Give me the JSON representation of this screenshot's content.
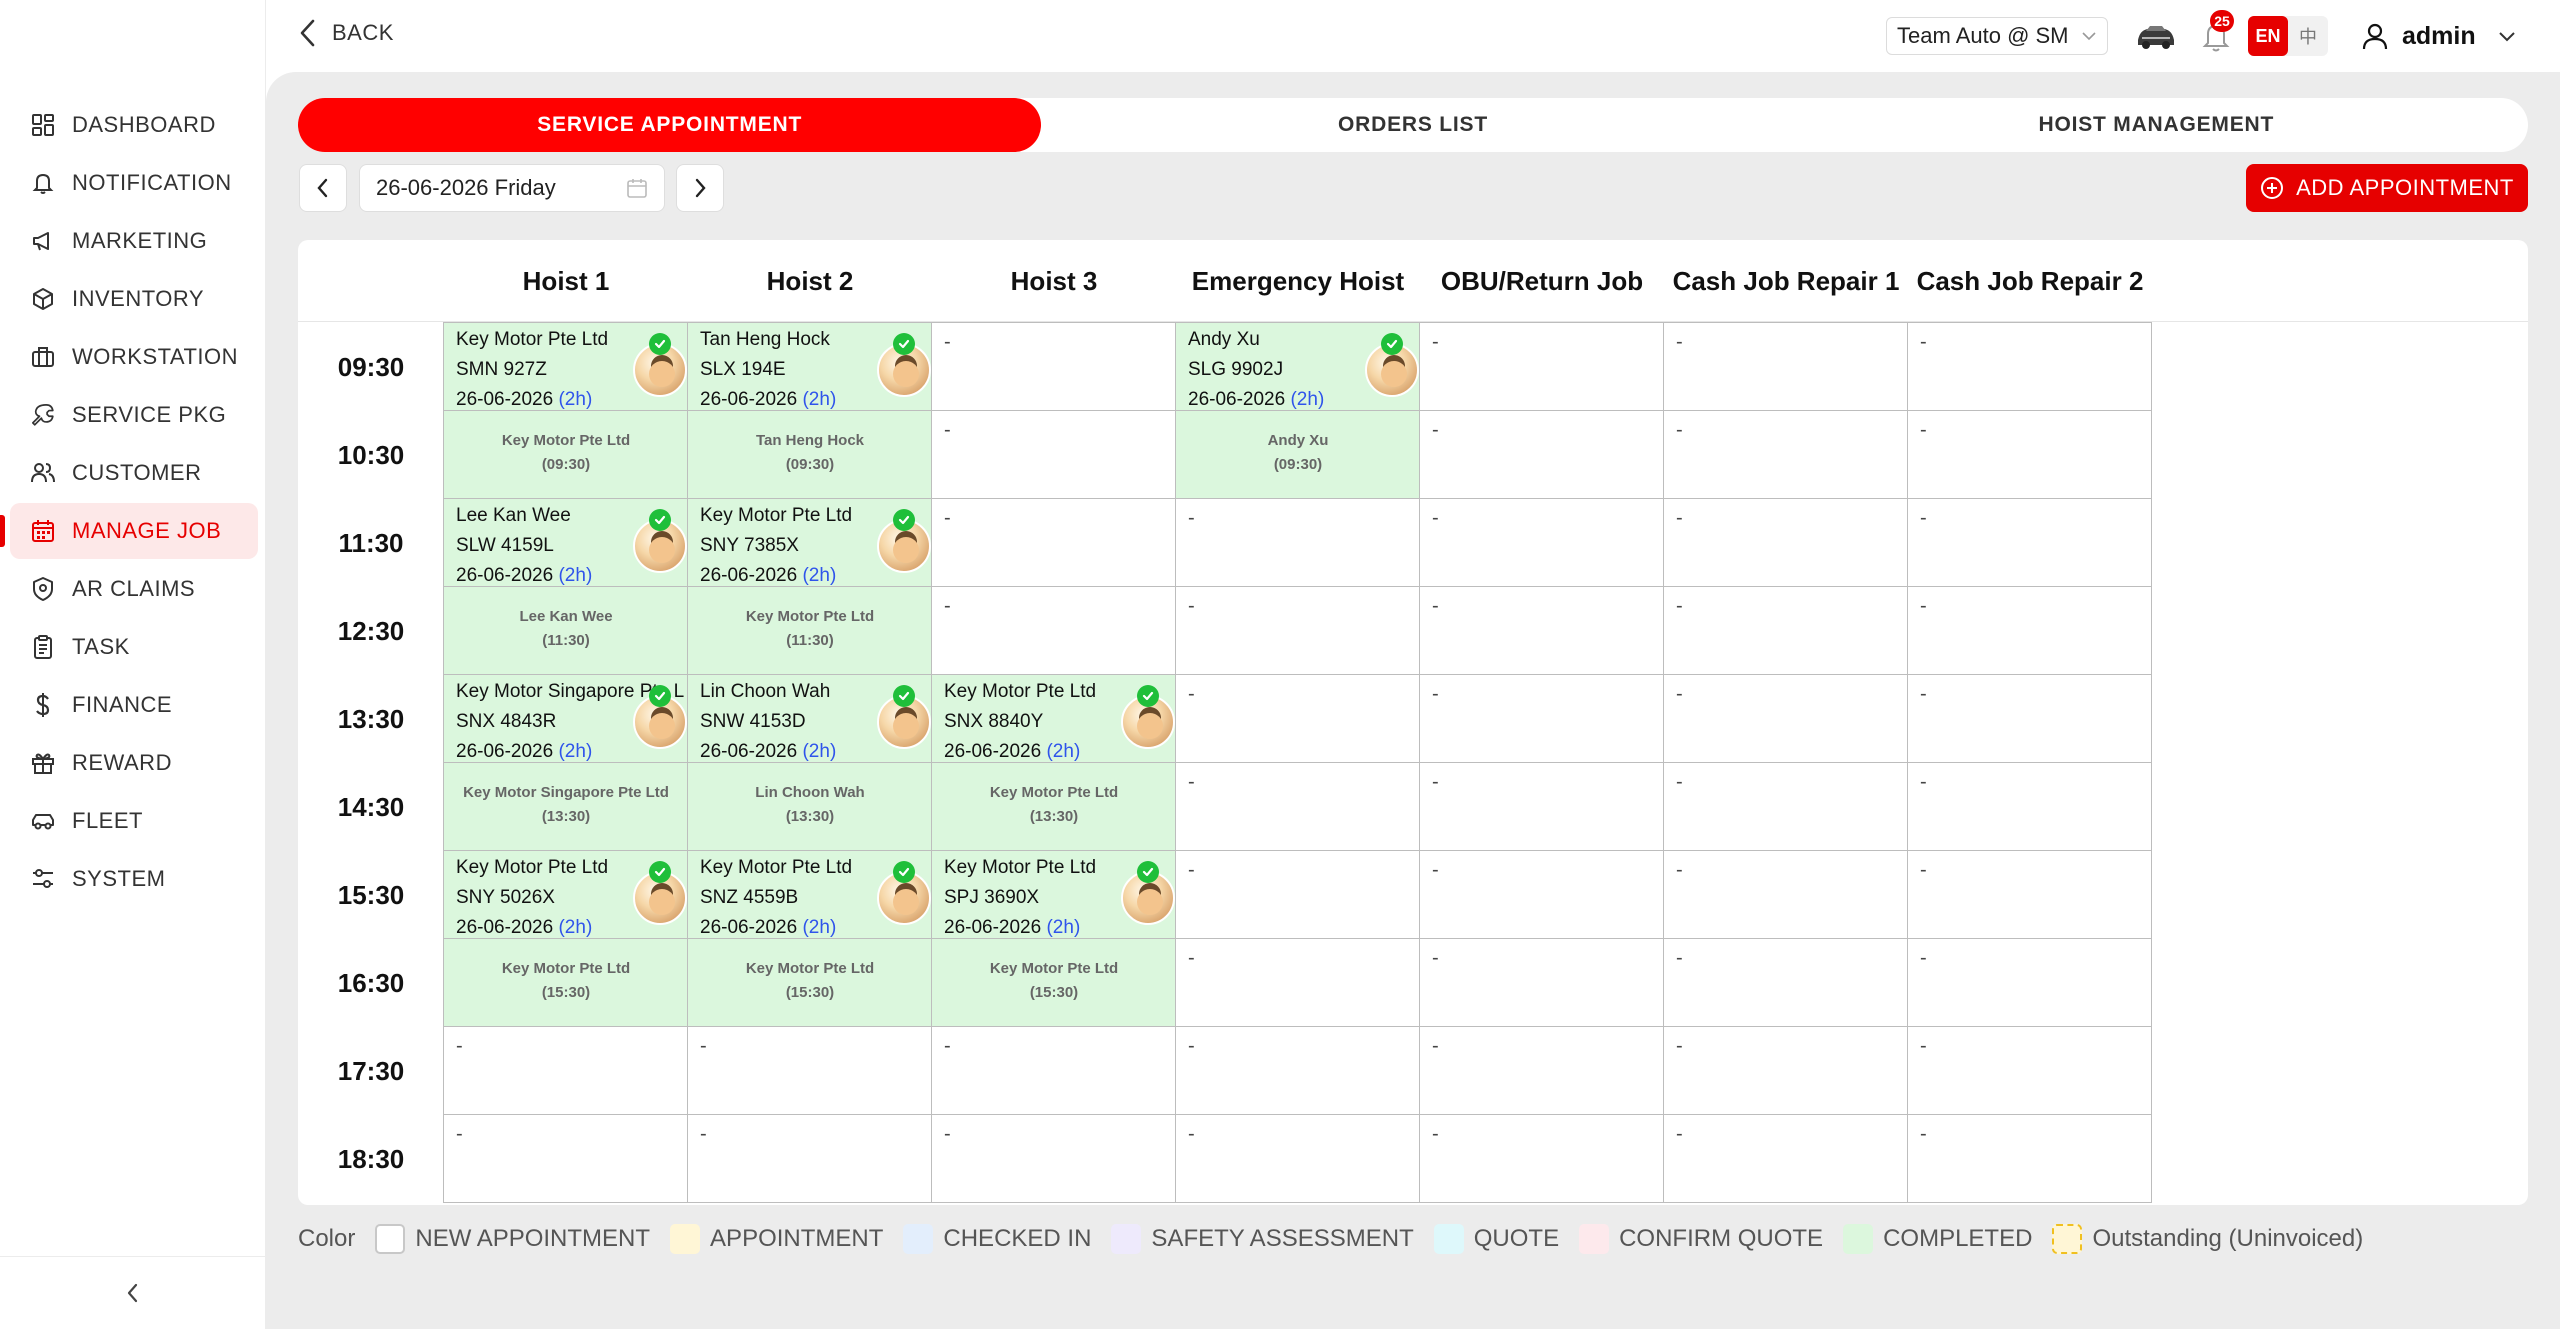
{
  "sidebar": {
    "items": [
      {
        "label": "DASHBOARD",
        "icon": "dashboard-icon"
      },
      {
        "label": "NOTIFICATION",
        "icon": "bell-icon"
      },
      {
        "label": "MARKETING",
        "icon": "megaphone-icon"
      },
      {
        "label": "INVENTORY",
        "icon": "box-icon"
      },
      {
        "label": "WORKSTATION",
        "icon": "briefcase-icon"
      },
      {
        "label": "SERVICE PKG",
        "icon": "wrench-icon"
      },
      {
        "label": "CUSTOMER",
        "icon": "users-icon"
      },
      {
        "label": "MANAGE JOB",
        "icon": "calendar-icon",
        "active": true
      },
      {
        "label": "AR CLAIMS",
        "icon": "shield-icon"
      },
      {
        "label": "TASK",
        "icon": "clipboard-icon"
      },
      {
        "label": "FINANCE",
        "icon": "dollar-icon"
      },
      {
        "label": "REWARD",
        "icon": "gift-icon"
      },
      {
        "label": "FLEET",
        "icon": "car-icon"
      },
      {
        "label": "SYSTEM",
        "icon": "settings-icon"
      }
    ]
  },
  "topbar": {
    "back_label": "BACK",
    "branch": "Team Auto @ SM",
    "notification_count": "25",
    "lang_en": "EN",
    "lang_zh": "中",
    "user": "admin"
  },
  "tabs": [
    {
      "label": "SERVICE APPOINTMENT",
      "active": true
    },
    {
      "label": "ORDERS LIST",
      "active": false
    },
    {
      "label": "HOIST MANAGEMENT",
      "active": false
    }
  ],
  "date_picker": {
    "value": "26-06-2026 Friday"
  },
  "add_button": {
    "label": "ADD APPOINTMENT"
  },
  "schedule": {
    "hoists": [
      "Hoist 1",
      "Hoist 2",
      "Hoist 3",
      "Emergency Hoist",
      "OBU/Return Job",
      "Cash Job Repair 1",
      "Cash Job Repair 2"
    ],
    "times": [
      "09:30",
      "10:30",
      "11:30",
      "12:30",
      "13:30",
      "14:30",
      "15:30",
      "16:30",
      "17:30",
      "18:30"
    ],
    "empty_mark": "-",
    "appointments": [
      {
        "col": 0,
        "row": 0,
        "customer": "Key Motor Pte Ltd",
        "plate": "SMN 927Z",
        "date": "26-06-2026",
        "duration": "(2h)",
        "start": "(09:30)"
      },
      {
        "col": 1,
        "row": 0,
        "customer": "Tan Heng Hock",
        "plate": "SLX 194E",
        "date": "26-06-2026",
        "duration": "(2h)",
        "start": "(09:30)"
      },
      {
        "col": 3,
        "row": 0,
        "customer": "Andy Xu",
        "plate": "SLG 9902J",
        "date": "26-06-2026",
        "duration": "(2h)",
        "start": "(09:30)"
      },
      {
        "col": 0,
        "row": 2,
        "customer": "Lee Kan Wee",
        "plate": "SLW 4159L",
        "date": "26-06-2026",
        "duration": "(2h)",
        "start": "(11:30)"
      },
      {
        "col": 1,
        "row": 2,
        "customer": "Key Motor Pte Ltd",
        "plate": "SNY 7385X",
        "date": "26-06-2026",
        "duration": "(2h)",
        "start": "(11:30)"
      },
      {
        "col": 0,
        "row": 4,
        "customer": "Key Motor Singapore Pte Ltd",
        "plate": "SNX 4843R",
        "date": "26-06-2026",
        "duration": "(2h)",
        "start": "(13:30)"
      },
      {
        "col": 1,
        "row": 4,
        "customer": "Lin Choon Wah",
        "plate": "SNW 4153D",
        "date": "26-06-2026",
        "duration": "(2h)",
        "start": "(13:30)"
      },
      {
        "col": 2,
        "row": 4,
        "customer": "Key Motor Pte Ltd",
        "plate": "SNX 8840Y",
        "date": "26-06-2026",
        "duration": "(2h)",
        "start": "(13:30)"
      },
      {
        "col": 0,
        "row": 6,
        "customer": "Key Motor Pte Ltd",
        "plate": "SNY 5026X",
        "date": "26-06-2026",
        "duration": "(2h)",
        "start": "(15:30)"
      },
      {
        "col": 1,
        "row": 6,
        "customer": "Key Motor Pte Ltd",
        "plate": "SNZ 4559B",
        "date": "26-06-2026",
        "duration": "(2h)",
        "start": "(15:30)"
      },
      {
        "col": 2,
        "row": 6,
        "customer": "Key Motor Pte Ltd",
        "plate": "SPJ 3690X",
        "date": "26-06-2026",
        "duration": "(2h)",
        "start": "(15:30)"
      }
    ]
  },
  "legend": {
    "title": "Color",
    "items": [
      {
        "label": "NEW APPOINTMENT",
        "color": "#ffffff",
        "border": "#c8c8c8"
      },
      {
        "label": "APPOINTMENT",
        "color": "#fff6d6",
        "border": "#fff6d6"
      },
      {
        "label": "CHECKED IN",
        "color": "#e3eefc",
        "border": "#e3eefc"
      },
      {
        "label": "SAFETY ASSESSMENT",
        "color": "#eeeafc",
        "border": "#eeeafc"
      },
      {
        "label": "QUOTE",
        "color": "#def8fb",
        "border": "#def8fb"
      },
      {
        "label": "CONFIRM QUOTE",
        "color": "#fde9ec",
        "border": "#fde9ec"
      },
      {
        "label": "COMPLETED",
        "color": "#dcf7dd",
        "border": "#dcf7dd"
      },
      {
        "label": "Outstanding (Uninvoiced)",
        "color": "#fff6d6",
        "border": "#f0c020",
        "dashed": true
      }
    ]
  },
  "colors": {
    "accent": "#e60000",
    "completed": "#dbf7dd",
    "duration_link": "#2f54eb"
  }
}
